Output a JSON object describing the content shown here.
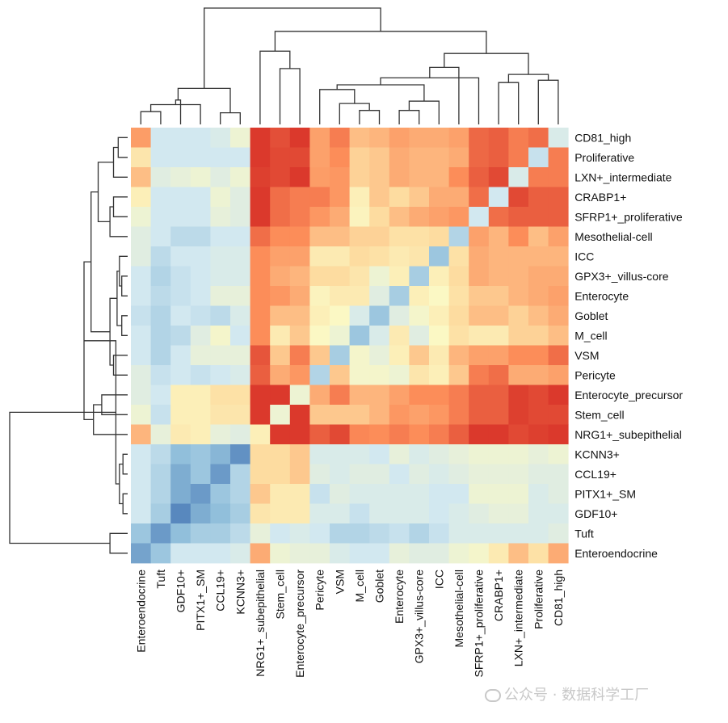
{
  "chart_data": {
    "type": "heatmap",
    "title": "",
    "xlabel": "",
    "ylabel": "",
    "rows": [
      "CD81_high",
      "Proliferative",
      "LXN+_intermediate",
      "CRABP1+",
      "SFRP1+_proliferative",
      "Mesothelial-cell",
      "ICC",
      "GPX3+_villus-core",
      "Enterocyte",
      "Goblet",
      "M_cell",
      "VSM",
      "Pericyte",
      "Enterocyte_precursor",
      "Stem_cell",
      "NRG1+_subepithelial",
      "KCNN3+",
      "CCL19+",
      "PITX1+_SM",
      "GDF10+",
      "Tuft",
      "Enteroendocrine"
    ],
    "columns": [
      "Enteroendocrine",
      "Tuft",
      "GDF10+",
      "PITX1+_SM",
      "CCL19+",
      "KCNN3+",
      "NRG1+_subepithelial",
      "Stem_cell",
      "Enterocyte_precursor",
      "Pericyte",
      "VSM",
      "M_cell",
      "Goblet",
      "Enterocyte",
      "GPX3+_villus-core",
      "ICC",
      "Mesothelial-cell",
      "SFRP1+_proliferative",
      "CRABP1+",
      "LXN+_intermediate",
      "Proliferative",
      "CD81_high"
    ],
    "values": [
      [
        0.62,
        -0.3,
        -0.3,
        -0.3,
        -0.25,
        -0.1,
        0.97,
        0.9,
        0.97,
        0.6,
        0.75,
        0.45,
        0.5,
        0.6,
        0.55,
        0.55,
        0.6,
        0.82,
        0.85,
        0.75,
        0.8,
        -0.25
      ],
      [
        0.2,
        -0.3,
        -0.3,
        -0.3,
        -0.3,
        -0.3,
        0.97,
        0.92,
        0.92,
        0.6,
        0.7,
        0.35,
        0.4,
        0.55,
        0.5,
        0.5,
        0.55,
        0.82,
        0.85,
        0.75,
        -0.35,
        0.75
      ],
      [
        0.45,
        -0.2,
        -0.15,
        -0.1,
        -0.2,
        -0.1,
        0.95,
        0.92,
        0.97,
        0.62,
        0.65,
        0.35,
        0.4,
        0.55,
        0.5,
        0.5,
        0.7,
        0.85,
        0.92,
        -0.25,
        0.75,
        0.75
      ],
      [
        0.1,
        -0.3,
        -0.3,
        -0.3,
        -0.1,
        -0.2,
        0.97,
        0.8,
        0.75,
        0.75,
        0.65,
        0.1,
        0.4,
        0.3,
        0.4,
        0.55,
        0.55,
        0.8,
        -0.3,
        0.92,
        0.85,
        0.85
      ],
      [
        -0.1,
        -0.3,
        -0.3,
        -0.3,
        -0.15,
        -0.2,
        0.97,
        0.8,
        0.75,
        0.65,
        0.55,
        0.05,
        0.3,
        0.45,
        0.55,
        0.6,
        0.65,
        -0.3,
        0.8,
        0.85,
        0.85,
        0.85
      ],
      [
        -0.2,
        -0.3,
        -0.4,
        -0.4,
        -0.3,
        -0.3,
        0.8,
        0.7,
        0.7,
        0.45,
        0.45,
        0.35,
        0.35,
        0.25,
        0.25,
        0.3,
        -0.45,
        0.6,
        0.5,
        0.7,
        0.45,
        0.6
      ],
      [
        -0.2,
        -0.4,
        -0.3,
        -0.3,
        -0.25,
        -0.25,
        0.7,
        0.6,
        0.6,
        0.15,
        0.15,
        0.3,
        0.25,
        0.15,
        0.2,
        -0.55,
        0.25,
        0.55,
        0.5,
        0.5,
        0.5,
        0.5
      ],
      [
        -0.3,
        -0.45,
        -0.35,
        -0.3,
        -0.25,
        -0.25,
        0.7,
        0.55,
        0.5,
        0.3,
        0.3,
        0.2,
        -0.1,
        0.1,
        -0.5,
        0.1,
        0.3,
        0.55,
        0.5,
        0.5,
        0.55,
        0.55
      ],
      [
        -0.3,
        -0.4,
        -0.35,
        -0.3,
        -0.15,
        -0.15,
        0.7,
        0.65,
        0.55,
        0.05,
        0.15,
        0.15,
        -0.2,
        -0.5,
        0.1,
        0.0,
        0.25,
        0.4,
        0.4,
        0.5,
        0.55,
        0.6
      ],
      [
        -0.35,
        -0.45,
        -0.3,
        -0.35,
        -0.4,
        -0.25,
        0.7,
        0.45,
        0.45,
        0.1,
        0.0,
        -0.25,
        -0.55,
        -0.2,
        -0.05,
        0.1,
        0.3,
        0.45,
        0.45,
        0.35,
        0.45,
        0.55
      ],
      [
        -0.3,
        -0.45,
        -0.4,
        -0.2,
        -0.05,
        -0.3,
        0.7,
        0.15,
        0.4,
        0.0,
        -0.1,
        -0.55,
        -0.25,
        0.15,
        -0.2,
        0.0,
        0.25,
        0.15,
        0.15,
        0.35,
        0.35,
        0.45
      ],
      [
        -0.3,
        -0.45,
        -0.3,
        -0.15,
        -0.15,
        -0.15,
        0.88,
        0.4,
        0.75,
        0.4,
        -0.5,
        -0.05,
        -0.15,
        0.1,
        0.4,
        0.15,
        0.5,
        0.6,
        0.6,
        0.7,
        0.7,
        0.8
      ],
      [
        -0.2,
        -0.35,
        -0.3,
        -0.35,
        -0.3,
        -0.25,
        0.85,
        0.55,
        0.65,
        -0.45,
        0.4,
        -0.05,
        -0.05,
        -0.1,
        0.2,
        0.1,
        0.4,
        0.75,
        0.8,
        0.55,
        0.55,
        0.6
      ],
      [
        -0.2,
        -0.3,
        0.1,
        0.1,
        0.25,
        0.25,
        0.97,
        0.97,
        -0.1,
        0.55,
        0.75,
        0.5,
        0.5,
        0.6,
        0.7,
        0.7,
        0.75,
        0.85,
        0.85,
        0.95,
        0.92,
        0.97
      ],
      [
        -0.1,
        -0.35,
        0.1,
        0.1,
        0.2,
        0.2,
        0.97,
        -0.1,
        0.97,
        0.4,
        0.4,
        0.4,
        0.5,
        0.65,
        0.6,
        0.65,
        0.75,
        0.85,
        0.85,
        0.95,
        0.92,
        0.92
      ],
      [
        0.5,
        -0.15,
        0.15,
        0.1,
        -0.15,
        -0.2,
        0.1,
        0.97,
        0.97,
        0.85,
        0.92,
        0.72,
        0.7,
        0.75,
        0.7,
        0.75,
        0.85,
        0.97,
        0.97,
        0.92,
        0.95,
        0.97
      ],
      [
        -0.3,
        -0.4,
        -0.6,
        -0.55,
        -0.65,
        -0.85,
        0.3,
        0.3,
        0.4,
        -0.25,
        -0.25,
        -0.25,
        -0.3,
        -0.15,
        -0.25,
        -0.2,
        -0.15,
        -0.1,
        -0.1,
        -0.1,
        -0.15,
        -0.1
      ],
      [
        -0.3,
        -0.45,
        -0.7,
        -0.55,
        -0.8,
        -0.45,
        0.3,
        0.3,
        0.4,
        -0.2,
        -0.25,
        -0.2,
        -0.2,
        -0.3,
        -0.2,
        -0.25,
        -0.2,
        -0.15,
        -0.15,
        -0.15,
        -0.2,
        -0.2
      ],
      [
        -0.3,
        -0.45,
        -0.7,
        -0.8,
        -0.55,
        -0.45,
        0.4,
        0.15,
        0.15,
        -0.35,
        -0.2,
        -0.25,
        -0.25,
        -0.25,
        -0.25,
        -0.3,
        -0.3,
        -0.1,
        -0.1,
        -0.1,
        -0.25,
        -0.2
      ],
      [
        -0.3,
        -0.5,
        -0.9,
        -0.7,
        -0.6,
        -0.5,
        0.2,
        0.15,
        0.15,
        -0.25,
        -0.25,
        -0.35,
        -0.25,
        -0.25,
        -0.25,
        -0.3,
        -0.25,
        -0.2,
        -0.15,
        -0.15,
        -0.25,
        -0.25
      ],
      [
        -0.55,
        -0.8,
        -0.6,
        -0.5,
        -0.5,
        -0.4,
        -0.15,
        -0.3,
        -0.25,
        -0.3,
        -0.45,
        -0.45,
        -0.4,
        -0.35,
        -0.45,
        -0.35,
        -0.25,
        -0.25,
        -0.25,
        -0.25,
        -0.25,
        -0.2
      ],
      [
        -0.75,
        -0.55,
        -0.3,
        -0.3,
        -0.3,
        -0.25,
        0.55,
        -0.1,
        -0.15,
        -0.15,
        -0.25,
        -0.3,
        -0.3,
        -0.15,
        -0.2,
        -0.2,
        -0.1,
        -0.05,
        0.15,
        0.45,
        0.25,
        0.55
      ]
    ],
    "color_scale": {
      "low": "#4575b4",
      "mid": "#fbf8c4",
      "high": "#d73027"
    },
    "col_dendrogram": [
      [
        0,
        1
      ],
      [
        4,
        5
      ],
      [
        3,
        22
      ],
      [
        2,
        24
      ],
      [
        23,
        25
      ],
      [
        7,
        8
      ],
      [
        6,
        27
      ],
      [
        11,
        12
      ],
      [
        10,
        29
      ],
      [
        9,
        30
      ],
      [
        13,
        14
      ],
      [
        15,
        32
      ],
      [
        31,
        33
      ],
      [
        18,
        19
      ],
      [
        20,
        21
      ],
      [
        17,
        34
      ],
      [
        36,
        35
      ],
      [
        16,
        37
      ],
      [
        38,
        39
      ],
      [
        28,
        40
      ],
      [
        26,
        41
      ]
    ],
    "col_dendrogram_heights": [
      0.11,
      0.1,
      0.17,
      0.21,
      0.31,
      0.48,
      0.63,
      0.12,
      0.18,
      0.3,
      0.12,
      0.2,
      0.34,
      0.36,
      0.38,
      0.4,
      0.43,
      0.49,
      0.61,
      0.8,
      1.0
    ],
    "row_dendrogram": [
      [
        0,
        1
      ],
      [
        2,
        22
      ],
      [
        3,
        4
      ],
      [
        5,
        24
      ],
      [
        23,
        25
      ],
      [
        7,
        8
      ],
      [
        6,
        27
      ],
      [
        9,
        10
      ],
      [
        28,
        29
      ],
      [
        11,
        12
      ],
      [
        30,
        31
      ],
      [
        26,
        32
      ],
      [
        13,
        14
      ],
      [
        15,
        34
      ],
      [
        33,
        35
      ],
      [
        16,
        17
      ],
      [
        18,
        19
      ],
      [
        37,
        38
      ],
      [
        36,
        39
      ],
      [
        20,
        21
      ],
      [
        40,
        41
      ]
    ],
    "row_dendrogram_heights": [
      0.08,
      0.12,
      0.12,
      0.15,
      0.25,
      0.05,
      0.07,
      0.05,
      0.09,
      0.12,
      0.15,
      0.31,
      0.22,
      0.29,
      0.37,
      0.04,
      0.04,
      0.07,
      0.1,
      0.15,
      1.0
    ],
    "legend": "none"
  },
  "watermark": {
    "text": "公众号 · 数据科学工厂"
  }
}
